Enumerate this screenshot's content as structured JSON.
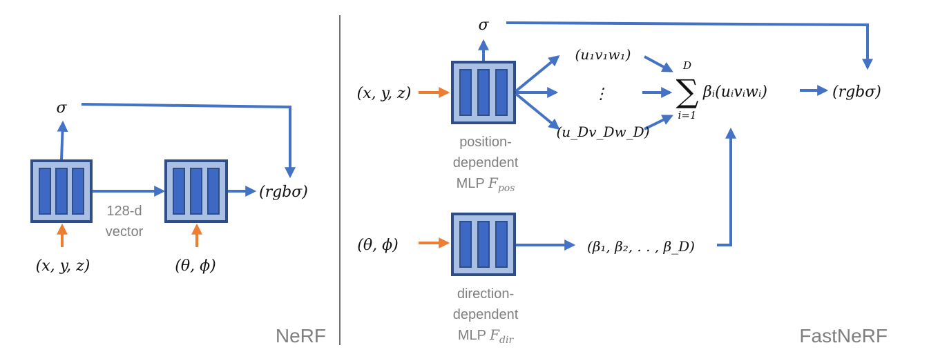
{
  "colors": {
    "blue_arrow": "#4472c4",
    "orange_arrow": "#ed7d31",
    "mlp_outer_fill": "#a9bfe3",
    "mlp_outer_stroke": "#2f4e88",
    "mlp_bar_fill": "#3d68c4",
    "text_gray": "#7f7f7f",
    "divider": "#404040"
  },
  "nerf": {
    "title": "NeRF",
    "sigma": "σ",
    "input_pos": "(x, y, z)",
    "input_dir": "(θ, ϕ)",
    "output": "(rgbσ)",
    "vector_label_line1": "128-d",
    "vector_label_line2": "vector"
  },
  "fastnerf": {
    "title": "FastNeRF",
    "sigma": "σ",
    "input_pos": "(x, y, z)",
    "input_dir": "(θ, ϕ)",
    "uvw_1": "(u₁v₁w₁)",
    "uvw_dots": "⋮",
    "uvw_D": "(u_Dv_Dw_D)",
    "sum_upper": "D",
    "sum_symbol": "∑",
    "sum_lower": "i=1",
    "sum_term": "βᵢ(uᵢvᵢwᵢ)",
    "output": "(rgbσ)",
    "betas": "(β₁, β₂, . . , β_D)",
    "pos_mlp_line1": "position-",
    "pos_mlp_line2": "dependent",
    "pos_mlp_line3_prefix": "MLP ",
    "pos_mlp_symbol": "F",
    "pos_mlp_subscript": "pos",
    "dir_mlp_line1": "direction-",
    "dir_mlp_line2": "dependent",
    "dir_mlp_line3_prefix": "MLP ",
    "dir_mlp_symbol": "F",
    "dir_mlp_subscript": "dir"
  }
}
